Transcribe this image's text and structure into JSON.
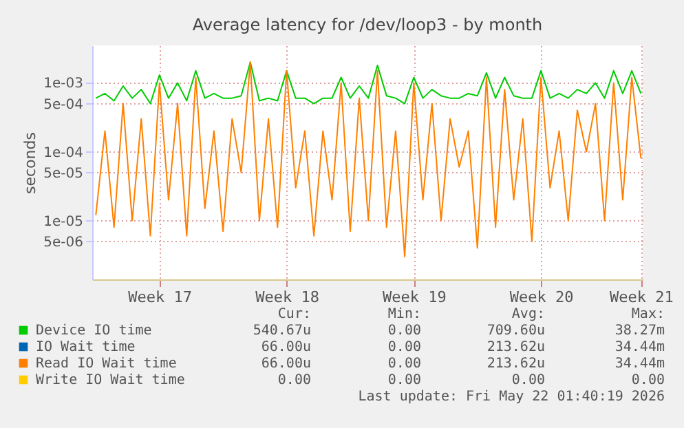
{
  "chart_data": {
    "type": "line",
    "title": "Average latency for /dev/loop3 - by month",
    "ylabel": "seconds",
    "categories": [
      null,
      null,
      null,
      null,
      null,
      null,
      null,
      "Week 17",
      null,
      null,
      null,
      null,
      null,
      null,
      null,
      null,
      null,
      null,
      null,
      null,
      null,
      "Week 18",
      null,
      null,
      null,
      null,
      null,
      null,
      null,
      null,
      null,
      null,
      null,
      null,
      null,
      "Week 19",
      null,
      null,
      null,
      null,
      null,
      null,
      null,
      null,
      null,
      null,
      null,
      null,
      null,
      "Week 20",
      null,
      null,
      null,
      null,
      null,
      null,
      null,
      null,
      null,
      null,
      "Week 21"
    ],
    "series": [
      {
        "name": "Device IO time",
        "color": "#00cc00",
        "values": [
          0.0006,
          0.0007,
          0.00055,
          0.0009,
          0.0006,
          0.0008,
          0.0005,
          0.0013,
          0.0006,
          0.001,
          0.00055,
          0.0015,
          0.0006,
          0.0007,
          0.0006,
          0.0006,
          0.00065,
          0.002,
          0.00055,
          0.0006,
          0.00055,
          0.0015,
          0.0006,
          0.0006,
          0.0005,
          0.0006,
          0.0006,
          0.0012,
          0.0006,
          0.0009,
          0.0006,
          0.0018,
          0.00065,
          0.0006,
          0.0005,
          0.0012,
          0.0006,
          0.0008,
          0.00065,
          0.0006,
          0.0006,
          0.0007,
          0.00065,
          0.0014,
          0.0006,
          0.0012,
          0.00065,
          0.0006,
          0.0006,
          0.0015,
          0.0006,
          0.0007,
          0.0006,
          0.0008,
          0.0007,
          0.001,
          0.0006,
          0.0015,
          0.0007,
          0.0015,
          0.0007
        ]
      },
      {
        "name": "IO Wait time",
        "color": "#0066b3",
        "values": [
          null,
          null,
          null,
          null,
          null,
          null,
          null,
          null,
          null,
          null,
          null,
          null,
          null,
          null,
          null,
          null,
          null,
          null,
          null,
          null,
          null,
          null,
          null,
          null,
          null,
          null,
          null,
          null,
          null,
          null,
          null,
          null,
          null,
          null,
          null,
          null,
          null,
          null,
          null,
          null,
          null,
          null,
          null,
          null,
          null,
          null,
          null,
          null,
          null,
          null,
          null,
          null,
          null,
          null,
          null,
          null,
          null,
          null,
          null,
          null,
          null
        ]
      },
      {
        "name": "Read IO Wait time",
        "color": "#ff8000",
        "values": [
          1.2e-05,
          0.0002,
          8e-06,
          0.0005,
          1e-05,
          0.0003,
          6e-06,
          0.001,
          2e-05,
          0.0005,
          6e-06,
          0.0012,
          1.5e-05,
          0.0002,
          7e-06,
          0.0003,
          5e-05,
          0.002,
          1e-05,
          0.0003,
          8e-06,
          0.0015,
          3e-05,
          0.0002,
          6e-06,
          0.0002,
          2e-05,
          0.001,
          7e-06,
          0.0006,
          1e-05,
          0.0015,
          8e-06,
          0.0002,
          3e-06,
          0.001,
          2e-05,
          0.0005,
          1e-05,
          0.0003,
          6e-05,
          0.0002,
          4e-06,
          0.0012,
          8e-06,
          0.0008,
          2e-05,
          0.0003,
          5e-06,
          0.0012,
          3e-05,
          0.0002,
          1e-05,
          0.0004,
          0.0001,
          0.0005,
          1e-05,
          0.001,
          2e-05,
          0.0012,
          8e-05
        ]
      },
      {
        "name": "Write IO Wait time",
        "color": "#ffcc00",
        "values": [
          null,
          null,
          null,
          null,
          null,
          null,
          null,
          null,
          null,
          null,
          null,
          null,
          null,
          null,
          null,
          null,
          null,
          null,
          null,
          null,
          null,
          null,
          null,
          null,
          null,
          null,
          null,
          null,
          null,
          null,
          null,
          null,
          null,
          null,
          null,
          null,
          null,
          null,
          null,
          null,
          null,
          null,
          null,
          null,
          null,
          null,
          null,
          null,
          null,
          null,
          null,
          null,
          null,
          null,
          null,
          null,
          null,
          null,
          null,
          null,
          null
        ]
      }
    ],
    "ylim": [
      1.4e-06,
      0.0035
    ],
    "yticks": [
      {
        "value": 5e-06,
        "label": "5e-06"
      },
      {
        "value": 1e-05,
        "label": "1e-05"
      },
      {
        "value": 5e-05,
        "label": "5e-05"
      },
      {
        "value": 0.0001,
        "label": "1e-04"
      },
      {
        "value": 0.0005,
        "label": "5e-04"
      },
      {
        "value": 0.001,
        "label": "1e-03"
      }
    ],
    "log": "y",
    "grid": true,
    "legend": "bottom",
    "line_style": "solid",
    "marker": "none",
    "annotations": [
      "Cur:",
      "Min:",
      "Avg:",
      "Max:",
      "540.67u",
      "0.00",
      "709.60u",
      "38.27m",
      "66.00u",
      "0.00",
      "213.62u",
      "34.44m",
      "66.00u",
      "0.00",
      "213.62u",
      "34.44m",
      "0.00",
      "0.00",
      "0.00",
      "0.00",
      "Last update: Fri May 22 01:40:19 2026"
    ]
  }
}
